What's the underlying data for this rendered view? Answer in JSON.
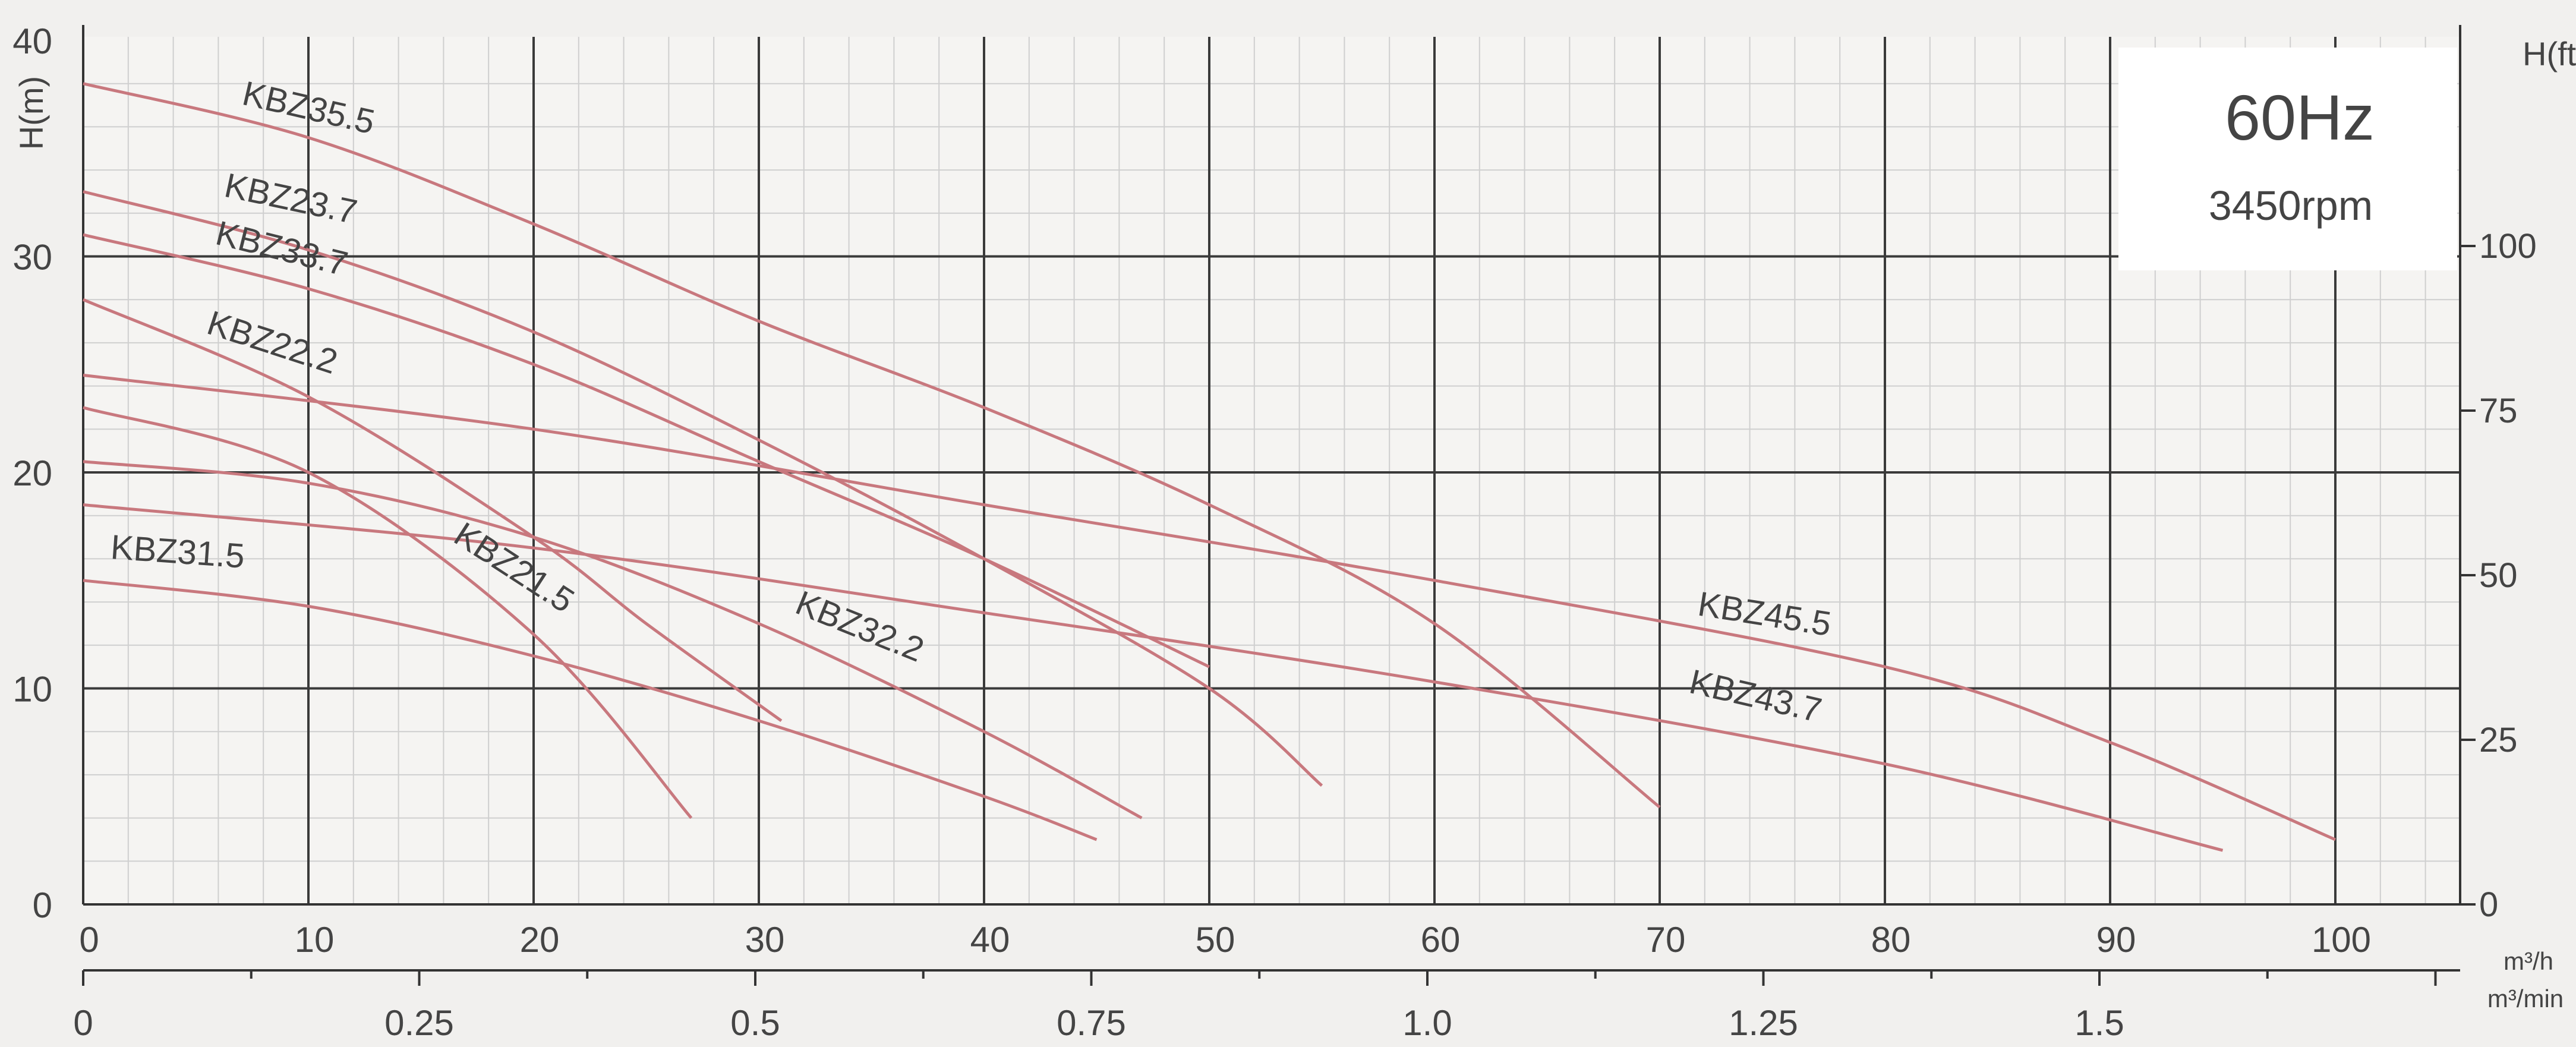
{
  "chart_data": {
    "type": "line",
    "title": "",
    "info_box": {
      "freq": "60Hz",
      "speed": "3450rpm"
    },
    "y_left": {
      "label": "H(m)",
      "min": 0,
      "max": 40,
      "ticks": [
        "0",
        "10",
        "20",
        "30",
        "40"
      ]
    },
    "y_right": {
      "label": "H(ft)",
      "ticks": [
        "0",
        "25",
        "50",
        "75",
        "100"
      ]
    },
    "x_primary": {
      "label": "m³/h",
      "min": 0,
      "max": 100,
      "ticks": [
        "0",
        "10",
        "20",
        "30",
        "40",
        "50",
        "60",
        "70",
        "80",
        "90",
        "100"
      ]
    },
    "x_secondary": {
      "label": "m³/min",
      "ticks": [
        "0",
        "0.25",
        "0.5",
        "0.75",
        "1.0",
        "1.25",
        "1.5"
      ]
    },
    "grid": true,
    "curve_color": "#c8787e",
    "series": [
      {
        "name": "KBZ35.5",
        "x": [
          0,
          10,
          20,
          30,
          40,
          50,
          60,
          70
        ],
        "y": [
          38,
          35.5,
          31.5,
          27,
          23,
          18.5,
          13,
          4.5
        ]
      },
      {
        "name": "KBZ23.7",
        "x": [
          0,
          10,
          20,
          30,
          40,
          50,
          55
        ],
        "y": [
          33,
          30.3,
          26.5,
          21.5,
          16,
          10,
          5.5
        ]
      },
      {
        "name": "KBZ33.7",
        "x": [
          0,
          10,
          20,
          30,
          40,
          50
        ],
        "y": [
          31,
          28.5,
          25,
          20.5,
          16,
          11
        ]
      },
      {
        "name": "KBZ22.2",
        "x": [
          0,
          10,
          20,
          25,
          31
        ],
        "y": [
          28,
          23.5,
          17,
          13,
          8.5
        ]
      },
      {
        "name": "KBZ45.5",
        "x": [
          0,
          20,
          40,
          60,
          80,
          90,
          100
        ],
        "y": [
          24.5,
          22,
          18.5,
          15,
          11,
          7.5,
          3
        ]
      },
      {
        "name": "KBZ21.5",
        "x": [
          0,
          10,
          20,
          27
        ],
        "y": [
          23,
          20,
          12.5,
          4
        ]
      },
      {
        "name": "KBZ32.2",
        "x": [
          0,
          10,
          20,
          30,
          40,
          47
        ],
        "y": [
          20.5,
          19.5,
          17,
          13,
          8,
          4
        ]
      },
      {
        "name": "KBZ43.7",
        "x": [
          0,
          20,
          40,
          60,
          80,
          95
        ],
        "y": [
          18.5,
          16.5,
          13.5,
          10.3,
          6.5,
          2.5
        ]
      },
      {
        "name": "KBZ31.5",
        "x": [
          0,
          10,
          20,
          30,
          40,
          45
        ],
        "y": [
          15,
          13.8,
          11.5,
          8.5,
          5,
          3
        ]
      }
    ]
  }
}
